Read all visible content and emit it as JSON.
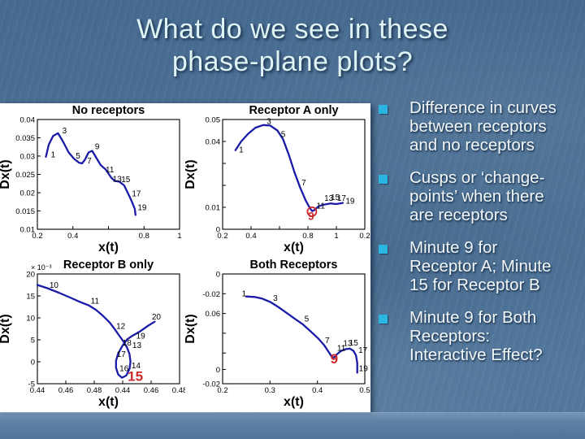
{
  "slide": {
    "title": "What do we see in these\nphase-plane plots?",
    "bullets": [
      "Difference in curves\nbetween receptors\nand no receptors",
      "Cusps or ‘change-\npoints’ when there\nare receptors",
      "Minute 9 for\nReceptor A; Minute\n15 for Receptor B",
      "Minute 9 for Both\nReceptors:\nInteractive Effect?"
    ],
    "colors": {
      "background": "#4d7296",
      "title_text": "#dff2f4",
      "body_text": "#f2f7f8",
      "bullet_square": "#2ab5e2",
      "panel": "#ffffff",
      "curve": "#1b1ba8",
      "annotation_red": "#cc2a2a"
    }
  },
  "chart_data": [
    {
      "type": "line",
      "title": "No receptors",
      "xlabel": "x(t)",
      "ylabel": "Dx(t)",
      "scale_note": "",
      "x_range": [
        0.2,
        1.0
      ],
      "y_range": [
        0.01,
        0.04
      ],
      "xticks": [
        {
          "f": 0,
          "label": "0.2"
        },
        {
          "f": 0.25,
          "label": "0.4"
        },
        {
          "f": 0.5,
          "label": ""
        },
        {
          "f": 0.75,
          "label": "0.8"
        },
        {
          "f": 1,
          "label": "1"
        }
      ],
      "yticks": [
        {
          "f": 1,
          "label": "0.04"
        },
        {
          "f": 0.833,
          "label": "0.035"
        },
        {
          "f": 0.667,
          "label": "0.03"
        },
        {
          "f": 0.5,
          "label": "0.025"
        },
        {
          "f": 0.333,
          "label": "0.02"
        },
        {
          "f": 0.167,
          "label": "0.015"
        },
        {
          "f": 0,
          "label": "0.01"
        }
      ],
      "curve": [
        [
          0.06,
          0.66
        ],
        [
          0.08,
          0.77
        ],
        [
          0.11,
          0.85
        ],
        [
          0.145,
          0.875
        ],
        [
          0.18,
          0.8
        ],
        [
          0.22,
          0.7
        ],
        [
          0.26,
          0.64
        ],
        [
          0.295,
          0.605
        ],
        [
          0.315,
          0.6
        ],
        [
          0.335,
          0.635
        ],
        [
          0.36,
          0.7
        ],
        [
          0.385,
          0.715
        ],
        [
          0.41,
          0.66
        ],
        [
          0.445,
          0.585
        ],
        [
          0.48,
          0.545
        ],
        [
          0.52,
          0.47
        ],
        [
          0.545,
          0.44
        ],
        [
          0.575,
          0.435
        ],
        [
          0.61,
          0.4
        ],
        [
          0.64,
          0.32
        ],
        [
          0.665,
          0.25
        ],
        [
          0.685,
          0.185
        ],
        [
          0.69,
          0.13
        ]
      ],
      "point_labels": [
        {
          "t": "1",
          "f": [
            0.095,
            0.655
          ]
        },
        {
          "t": "3",
          "f": [
            0.175,
            0.875
          ]
        },
        {
          "t": "5",
          "f": [
            0.27,
            0.645
          ]
        },
        {
          "t": "7",
          "f": [
            0.35,
            0.6
          ]
        },
        {
          "t": "9",
          "f": [
            0.405,
            0.73
          ]
        },
        {
          "t": "11",
          "f": [
            0.48,
            0.52
          ]
        },
        {
          "t": "13",
          "f": [
            0.53,
            0.435
          ]
        },
        {
          "t": "15",
          "f": [
            0.59,
            0.43
          ]
        },
        {
          "t": "17",
          "f": [
            0.665,
            0.3
          ]
        },
        {
          "t": "19",
          "f": [
            0.705,
            0.175
          ]
        }
      ],
      "approx_points_data_units": {
        "1": [
          0.28,
          0.03
        ],
        "3": [
          0.33,
          0.036
        ],
        "5": [
          0.42,
          0.029
        ],
        "7": [
          0.47,
          0.029
        ],
        "9": [
          0.51,
          0.032
        ],
        "11": [
          0.57,
          0.026
        ],
        "13": [
          0.63,
          0.023
        ],
        "15": [
          0.66,
          0.023
        ],
        "17": [
          0.72,
          0.02
        ],
        "19": [
          0.75,
          0.016
        ]
      },
      "red_annotations": []
    },
    {
      "type": "line",
      "title": "Receptor A only",
      "xlabel": "x(t)",
      "ylabel": "Dx(t)",
      "scale_note": "",
      "x_range": [
        0.2,
        1.2
      ],
      "y_range": [
        0,
        0.05
      ],
      "xticks": [
        {
          "f": 0,
          "label": "0.2"
        },
        {
          "f": 0.2,
          "label": "0.4"
        },
        {
          "f": 0.4,
          "label": ""
        },
        {
          "f": 0.6,
          "label": "0.8"
        },
        {
          "f": 0.8,
          "label": "1"
        },
        {
          "f": 1,
          "label": "0.2"
        }
      ],
      "yticks": [
        {
          "f": 1,
          "label": "0.05"
        },
        {
          "f": 0.8,
          "label": "0.04"
        },
        {
          "f": 0.6,
          "label": ""
        },
        {
          "f": 0.4,
          "label": ""
        },
        {
          "f": 0.2,
          "label": "0.01"
        },
        {
          "f": 0,
          "label": "0"
        }
      ],
      "curve": [
        [
          0.09,
          0.72
        ],
        [
          0.13,
          0.8
        ],
        [
          0.18,
          0.87
        ],
        [
          0.23,
          0.925
        ],
        [
          0.285,
          0.95
        ],
        [
          0.335,
          0.945
        ],
        [
          0.385,
          0.9
        ],
        [
          0.425,
          0.82
        ],
        [
          0.465,
          0.68
        ],
        [
          0.505,
          0.52
        ],
        [
          0.545,
          0.38
        ],
        [
          0.585,
          0.26
        ],
        [
          0.615,
          0.19
        ],
        [
          0.63,
          0.165
        ],
        [
          0.645,
          0.175
        ],
        [
          0.675,
          0.21
        ],
        [
          0.715,
          0.225
        ],
        [
          0.76,
          0.235
        ],
        [
          0.8,
          0.23
        ],
        [
          0.845,
          0.24
        ]
      ],
      "point_labels": [
        {
          "t": "1",
          "f": [
            0.115,
            0.7
          ]
        },
        {
          "t": "3",
          "f": [
            0.31,
            0.96
          ]
        },
        {
          "t": "5",
          "f": [
            0.41,
            0.84
          ]
        },
        {
          "t": "7",
          "f": [
            0.555,
            0.4
          ]
        },
        {
          "t": "11",
          "f": [
            0.66,
            0.19
          ]
        },
        {
          "t": "13",
          "f": [
            0.715,
            0.26
          ]
        },
        {
          "t": "15",
          "f": [
            0.76,
            0.265
          ]
        },
        {
          "t": "17",
          "f": [
            0.805,
            0.26
          ]
        },
        {
          "t": "19",
          "f": [
            0.865,
            0.235
          ]
        }
      ],
      "approx_points_data_units": {
        "1": [
          0.29,
          0.037
        ],
        "3": [
          0.48,
          0.048
        ],
        "5": [
          0.59,
          0.042
        ],
        "7": [
          0.73,
          0.021
        ],
        "9": [
          0.82,
          0.008
        ],
        "11": [
          0.86,
          0.01
        ],
        "13": [
          0.9,
          0.011
        ],
        "15": [
          0.94,
          0.012
        ],
        "17": [
          0.99,
          0.012
        ],
        "19": [
          1.05,
          0.011
        ]
      },
      "red_annotations": [
        {
          "t": "9",
          "f": [
            0.6,
            0.085
          ],
          "size": 14,
          "circle": [
            0.628,
            0.16
          ],
          "r": 5.5
        }
      ]
    },
    {
      "type": "line",
      "title": "Receptor B only",
      "xlabel": "x(t)",
      "ylabel": "Dx(t)",
      "scale_note": "× 10⁻³",
      "x_range_note": "tick labels as printed: 0.44 0.46 0.48 0.44 0.46 0.48",
      "y_range": [
        -0.005,
        0.02
      ],
      "xticks": [
        {
          "f": 0,
          "label": "0.44"
        },
        {
          "f": 0.2,
          "label": "0.46"
        },
        {
          "f": 0.4,
          "label": "0.48"
        },
        {
          "f": 0.6,
          "label": "0.44"
        },
        {
          "f": 0.8,
          "label": "0.46"
        },
        {
          "f": 1,
          "label": "0.48"
        }
      ],
      "yticks": [
        {
          "f": 1,
          "label": "20"
        },
        {
          "f": 0.8,
          "label": "15"
        },
        {
          "f": 0.6,
          "label": "10"
        },
        {
          "f": 0.4,
          "label": "5"
        },
        {
          "f": 0.2,
          "label": "0"
        },
        {
          "f": 0,
          "label": "-5"
        }
      ],
      "curve": [
        [
          0.0,
          0.9
        ],
        [
          0.07,
          0.87
        ],
        [
          0.15,
          0.83
        ],
        [
          0.23,
          0.785
        ],
        [
          0.3,
          0.745
        ],
        [
          0.36,
          0.715
        ],
        [
          0.41,
          0.675
        ],
        [
          0.46,
          0.62
        ],
        [
          0.51,
          0.555
        ],
        [
          0.545,
          0.495
        ],
        [
          0.575,
          0.44
        ],
        [
          0.605,
          0.385
        ],
        [
          0.63,
          0.33
        ],
        [
          0.648,
          0.27
        ],
        [
          0.655,
          0.2
        ],
        [
          0.648,
          0.135
        ],
        [
          0.625,
          0.075
        ],
        [
          0.595,
          0.055
        ],
        [
          0.568,
          0.085
        ],
        [
          0.553,
          0.145
        ],
        [
          0.553,
          0.21
        ],
        [
          0.568,
          0.275
        ],
        [
          0.598,
          0.345
        ],
        [
          0.632,
          0.405
        ],
        [
          0.672,
          0.44
        ],
        [
          0.72,
          0.475
        ],
        [
          0.78,
          0.53
        ],
        [
          0.825,
          0.565
        ]
      ],
      "point_labels": [
        {
          "t": "10",
          "f": [
            0.085,
            0.875
          ]
        },
        {
          "t": "11",
          "f": [
            0.375,
            0.73
          ]
        },
        {
          "t": "12",
          "f": [
            0.555,
            0.5
          ]
        },
        {
          "t": "18",
          "f": [
            0.598,
            0.35
          ]
        },
        {
          "t": "13",
          "f": [
            0.668,
            0.325
          ]
        },
        {
          "t": "17",
          "f": [
            0.558,
            0.245
          ]
        },
        {
          "t": "16",
          "f": [
            0.578,
            0.115
          ]
        },
        {
          "t": "14",
          "f": [
            0.662,
            0.14
          ]
        },
        {
          "t": "19",
          "f": [
            0.695,
            0.41
          ]
        },
        {
          "t": "20",
          "f": [
            0.805,
            0.585
          ]
        }
      ],
      "approx_y_values_times_1e3": {
        "10": 17.5,
        "11": 13,
        "12": 7.5,
        "13": 3.5,
        "14": -1,
        "15": -2.5,
        "16": -1,
        "17": 0.5,
        "18": 3.5,
        "19": 6,
        "20": 9.5
      },
      "red_annotations": [
        {
          "t": "15",
          "f": [
            0.635,
            0.025
          ],
          "size": 17
        }
      ]
    },
    {
      "type": "line",
      "title": "Both Receptors",
      "xlabel": "x(t)",
      "ylabel": "Dx(t)",
      "scale_note": "",
      "x_range": [
        0.2,
        0.5
      ],
      "y_range_note": "tick labels as printed (top to bottom): 0, -0.02, 0.06, 0, -0.02",
      "xticks": [
        {
          "f": 0,
          "label": "0.2"
        },
        {
          "f": 0.333,
          "label": "0.3"
        },
        {
          "f": 0.667,
          "label": "0.4"
        },
        {
          "f": 1,
          "label": "0.5"
        }
      ],
      "yticks": [
        {
          "f": 1,
          "label": "0"
        },
        {
          "f": 0.82,
          "label": "-0.02"
        },
        {
          "f": 0.64,
          "label": "0.06"
        },
        {
          "f": 0.46,
          "label": ""
        },
        {
          "f": 0.28,
          "label": ""
        },
        {
          "f": 0.13,
          "label": "0"
        },
        {
          "f": 0,
          "label": "-0.02"
        }
      ],
      "curve": [
        [
          0.165,
          0.795
        ],
        [
          0.225,
          0.79
        ],
        [
          0.28,
          0.775
        ],
        [
          0.335,
          0.745
        ],
        [
          0.39,
          0.7
        ],
        [
          0.45,
          0.645
        ],
        [
          0.51,
          0.59
        ],
        [
          0.565,
          0.54
        ],
        [
          0.625,
          0.47
        ],
        [
          0.675,
          0.41
        ],
        [
          0.715,
          0.35
        ],
        [
          0.748,
          0.285
        ],
        [
          0.768,
          0.245
        ],
        [
          0.785,
          0.24
        ],
        [
          0.805,
          0.27
        ],
        [
          0.835,
          0.3
        ],
        [
          0.865,
          0.315
        ],
        [
          0.895,
          0.32
        ],
        [
          0.92,
          0.3
        ],
        [
          0.938,
          0.26
        ],
        [
          0.947,
          0.19
        ],
        [
          0.947,
          0.1
        ]
      ],
      "point_labels": [
        {
          "t": "1",
          "f": [
            0.135,
            0.795
          ]
        },
        {
          "t": "3",
          "f": [
            0.355,
            0.755
          ]
        },
        {
          "t": "5",
          "f": [
            0.575,
            0.565
          ]
        },
        {
          "t": "7",
          "f": [
            0.72,
            0.37
          ]
        },
        {
          "t": "11",
          "f": [
            0.805,
            0.3
          ]
        },
        {
          "t": "13",
          "f": [
            0.848,
            0.345
          ]
        },
        {
          "t": "15",
          "f": [
            0.89,
            0.35
          ]
        },
        {
          "t": "17",
          "f": [
            0.955,
            0.28
          ]
        },
        {
          "t": "19",
          "f": [
            0.958,
            0.115
          ]
        }
      ],
      "approx_x_values": {
        "1": 0.25,
        "3": 0.31,
        "5": 0.37,
        "7": 0.415,
        "9": 0.43,
        "11": 0.44,
        "13": 0.455,
        "15": 0.465,
        "17": 0.485,
        "19": 0.485
      },
      "red_annotations": [
        {
          "t": "9",
          "f": [
            0.758,
            0.185
          ],
          "size": 17
        }
      ]
    }
  ]
}
